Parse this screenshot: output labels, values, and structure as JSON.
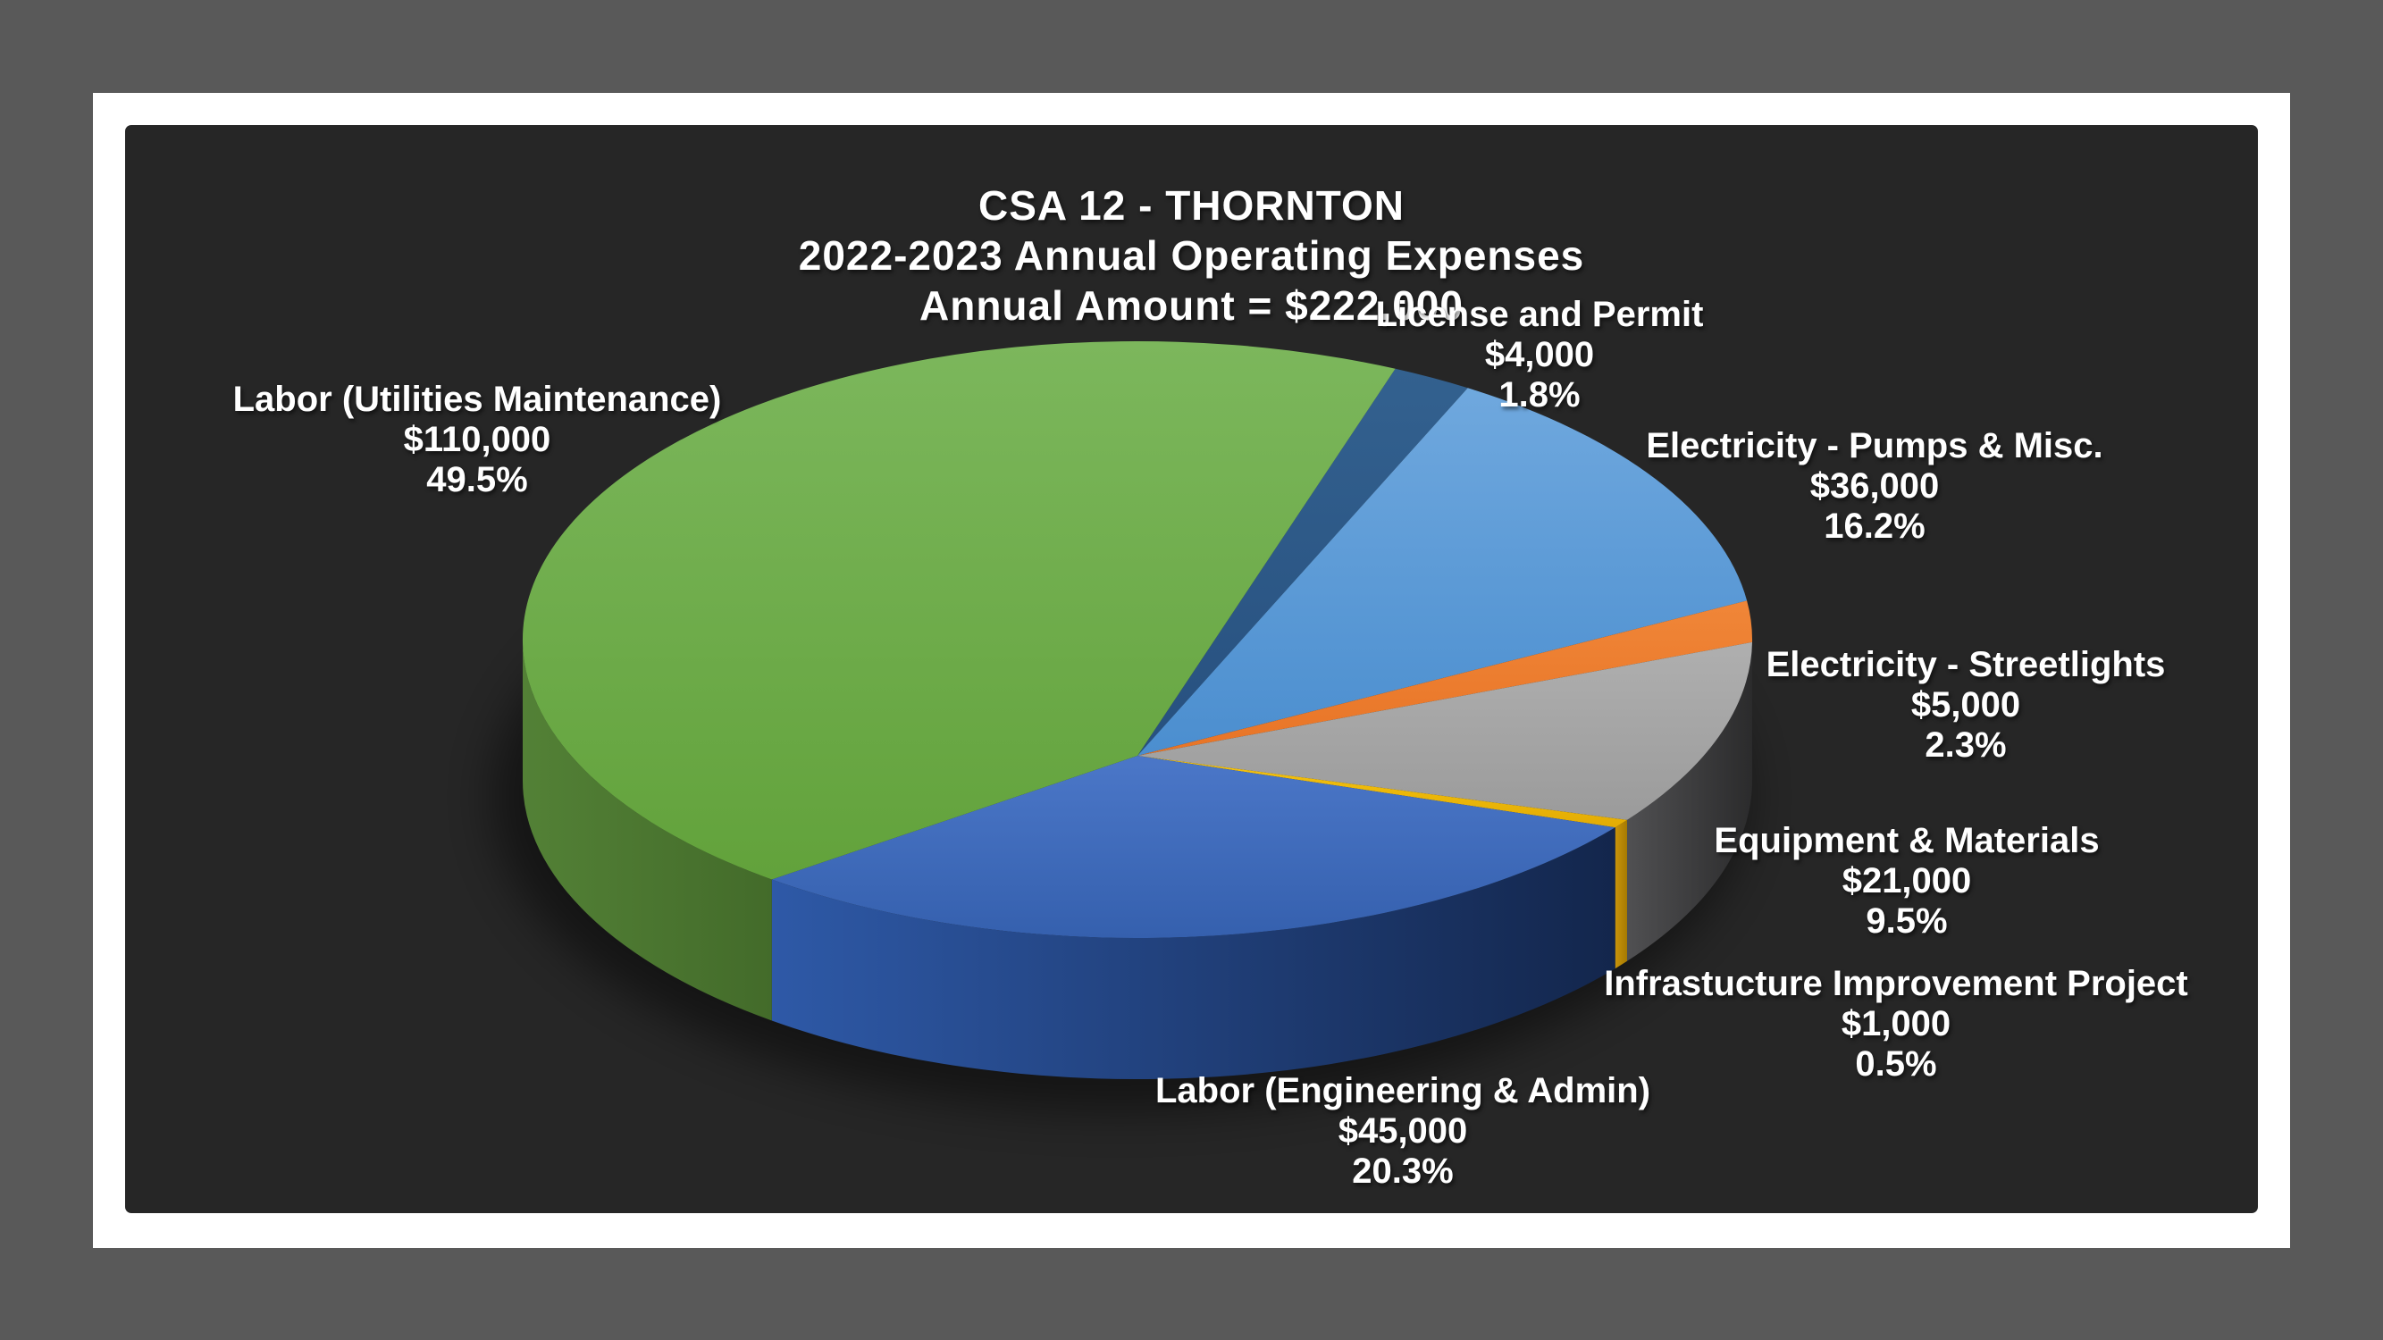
{
  "page": {
    "outer_background": "#595959",
    "slide_background": "#ffffff",
    "chart_background": "#262626",
    "text_color": "#ffffff"
  },
  "chart_data": {
    "type": "pie",
    "three_d": true,
    "title_lines": [
      "CSA 12 - THORNTON",
      "2022-2023 Annual Operating Expenses",
      "Annual Amount = $222,000"
    ],
    "total_value": 222000,
    "legend": "none",
    "labels_position": "outside",
    "start_angle_deg": 24.8,
    "slices": [
      {
        "key": "license_permit",
        "label": "License and Permit",
        "value": 4000,
        "amount_label": "$4,000",
        "pct": 1.8,
        "pct_label": "1.8%",
        "color": "#2E5C8C",
        "grad": [
          "#33618F",
          "#27507F"
        ],
        "wall_grad": [
          "#1E3C5F",
          "#152B46"
        ],
        "arc": [
          24.8,
          32.5
        ],
        "label_pos": [
          1723,
          330
        ]
      },
      {
        "key": "electricity_pumps",
        "label": "Electricity - Pumps & Misc.",
        "value": 36000,
        "amount_label": "$36,000",
        "pct": 16.2,
        "pct_label": "16.2%",
        "color": "#5B9BD5",
        "grad": [
          "#6FA8DE",
          "#4B8ECF"
        ],
        "wall_grad": [
          "#2F6699",
          "#24507A"
        ],
        "arc": [
          32.5,
          82.5
        ],
        "label_pos": [
          2098,
          477
        ]
      },
      {
        "key": "electricity_streetlights",
        "label": "Electricity - Streetlights",
        "value": 5000,
        "amount_label": "$5,000",
        "pct": 2.3,
        "pct_label": "2.3%",
        "color": "#ED7D31",
        "grad": [
          "#F08638",
          "#E87426"
        ],
        "wall_grad": [
          "#B45A1E",
          "#8F4718"
        ],
        "arc": [
          82.5,
          90.5
        ],
        "label_pos": [
          2200,
          722
        ]
      },
      {
        "key": "equipment_materials",
        "label": "Equipment & Materials",
        "value": 21000,
        "amount_label": "$21,000",
        "pct": 9.5,
        "pct_label": "9.5%",
        "color": "#A5A5A5",
        "grad": [
          "#AFAFAF",
          "#9B9B9B"
        ],
        "wall_grad": [
          "#505052",
          "#2B2B2C"
        ],
        "arc": [
          90.5,
          127.2
        ],
        "label_pos": [
          2134,
          919
        ]
      },
      {
        "key": "infrastructure_project",
        "label": "Infrastucture Improvement Project",
        "value": 1000,
        "amount_label": "$1,000",
        "pct": 0.5,
        "pct_label": "0.5%",
        "color": "#FFC000",
        "grad": [
          "#F6C40E",
          "#E3AC04"
        ],
        "wall_grad": [
          "#C9940A",
          "#A67A02"
        ],
        "arc": [
          127.2,
          129.0
        ],
        "label_pos": [
          2122,
          1079
        ]
      },
      {
        "key": "labor_engineering",
        "label": "Labor (Engineering & Admin)",
        "value": 45000,
        "amount_label": "$45,000",
        "pct": 20.3,
        "pct_label": "20.3%",
        "color": "#4472C4",
        "grad": [
          "#4B77C8",
          "#3560AE"
        ],
        "wall_grad": [
          "#2E59A7",
          "#13264C"
        ],
        "arc": [
          129.0,
          216.5
        ],
        "label_pos": [
          1570,
          1199
        ]
      },
      {
        "key": "labor_utilities",
        "label": "Labor (Utilities Maintenance)",
        "value": 110000,
        "amount_label": "$110,000",
        "pct": 49.5,
        "pct_label": "49.5%",
        "color": "#70AD47",
        "grad": [
          "#7CB75C",
          "#62A23B"
        ],
        "wall_grad": [
          "#538136",
          "#436B2A"
        ],
        "arc": [
          216.5,
          384.8
        ],
        "label_pos": [
          534,
          425
        ]
      }
    ]
  }
}
